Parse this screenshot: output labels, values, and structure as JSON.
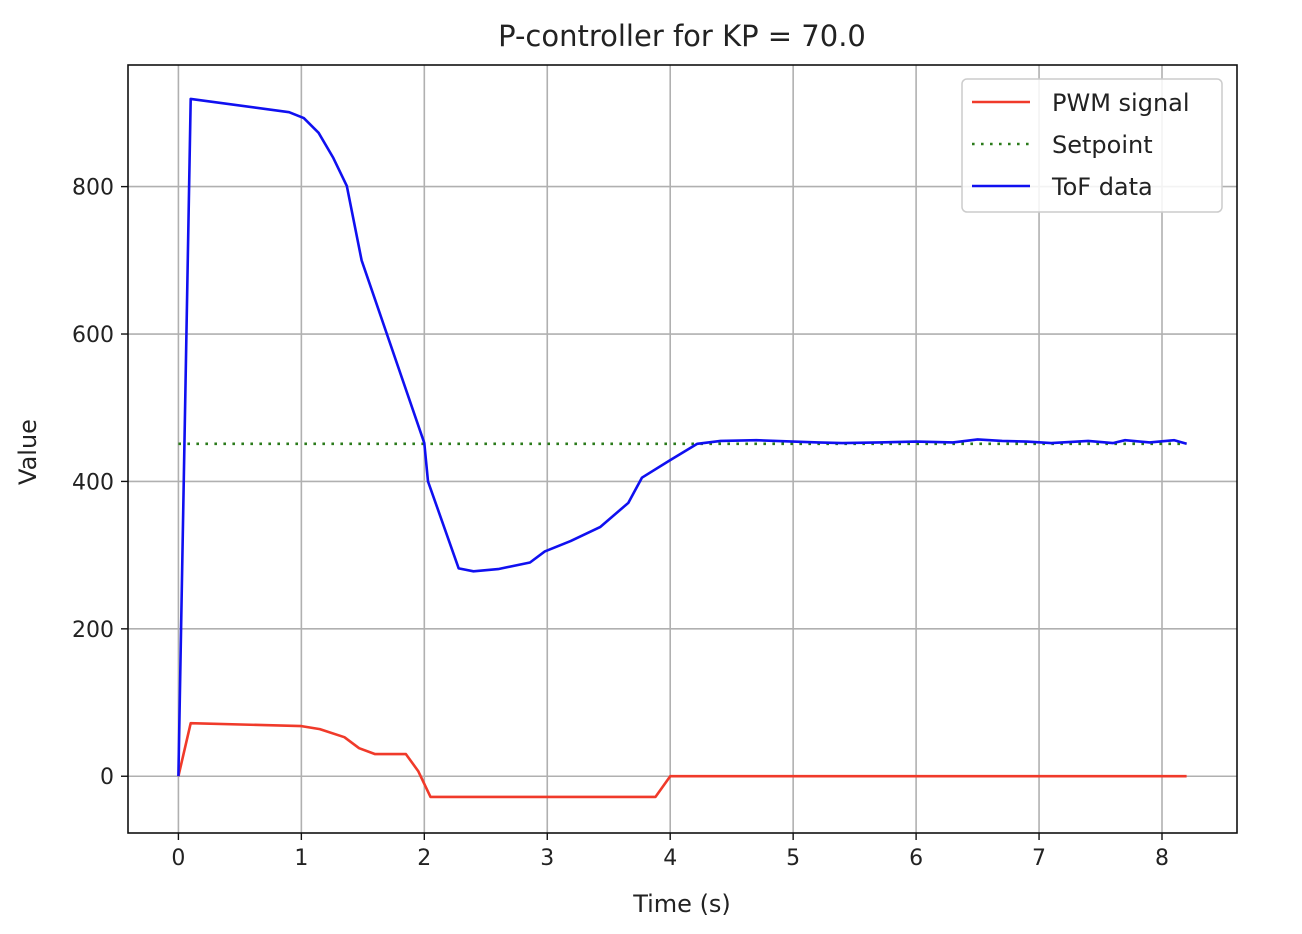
{
  "chart_data": {
    "type": "line",
    "title": "P-controller for KP = 70.0",
    "xlabel": "Time (s)",
    "ylabel": "Value",
    "xlim": [
      -0.41,
      8.61
    ],
    "ylim": [
      -77,
      965
    ],
    "xticks": [
      0,
      1,
      2,
      3,
      4,
      5,
      6,
      7,
      8
    ],
    "xtick_labels": [
      "0",
      "1",
      "2",
      "3",
      "4",
      "5",
      "6",
      "7",
      "8"
    ],
    "yticks": [
      0,
      200,
      400,
      600,
      800
    ],
    "ytick_labels": [
      "0",
      "200",
      "400",
      "600",
      "800"
    ],
    "grid": true,
    "legend_position": "top-right",
    "series": [
      {
        "name": "PWM signal",
        "color": "#f03a2a",
        "style": "solid",
        "x": [
          0,
          0.1,
          1.0,
          1.15,
          1.35,
          1.47,
          1.6,
          1.85,
          1.95,
          2.05,
          3.88,
          4.0,
          8.2
        ],
        "y": [
          0,
          72,
          68,
          64,
          53,
          38,
          30,
          30,
          7,
          -28,
          -28,
          0,
          0
        ]
      },
      {
        "name": "Setpoint",
        "color": "#2a7a1a",
        "style": "dotted",
        "x": [
          0,
          8.2
        ],
        "y": [
          451,
          451
        ]
      },
      {
        "name": "ToF data",
        "color": "#1010f0",
        "style": "solid",
        "x": [
          0,
          0.1,
          0.9,
          1.02,
          1.14,
          1.26,
          1.37,
          1.49,
          2.0,
          2.03,
          2.28,
          2.4,
          2.6,
          2.86,
          2.98,
          3.19,
          3.43,
          3.66,
          3.77,
          4.0,
          4.22,
          4.41,
          4.7,
          5.0,
          5.2,
          5.4,
          5.7,
          6.0,
          6.3,
          6.5,
          6.7,
          6.9,
          7.1,
          7.4,
          7.6,
          7.7,
          7.9,
          8.1,
          8.2
        ],
        "y": [
          0,
          919,
          901,
          893,
          873,
          839,
          801,
          700,
          452,
          400,
          282,
          278,
          281,
          290,
          305,
          319,
          338,
          371,
          405,
          429,
          451,
          455,
          456,
          454,
          453,
          452,
          453,
          454,
          453,
          457,
          455,
          454,
          452,
          455,
          452,
          456,
          453,
          456,
          451
        ]
      }
    ]
  }
}
